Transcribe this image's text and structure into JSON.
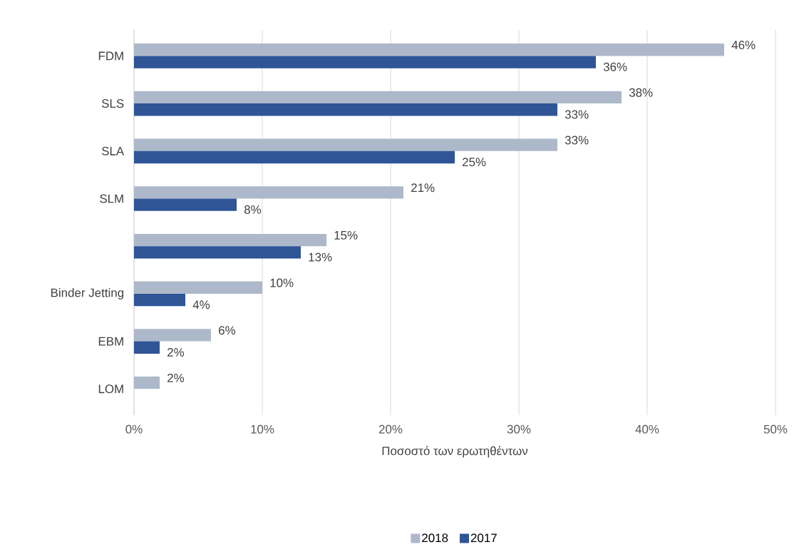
{
  "chart_data": {
    "type": "bar",
    "orientation": "horizontal",
    "xlabel": "Ποσοστό των ερωτηθέντων",
    "categories": [
      "FDM",
      "SLS",
      "SLA",
      "SLM",
      null,
      "Binder Jetting",
      "EBM",
      "LOM"
    ],
    "series": [
      {
        "name": "2018",
        "color": "#adb9ca",
        "values": [
          46,
          38,
          33,
          21,
          15,
          10,
          6,
          2
        ],
        "value_labels": [
          "46%",
          "38%",
          "33%",
          "21%",
          "15%",
          "10%",
          "6%",
          "2%"
        ]
      },
      {
        "name": "2017",
        "color": "#2f5597",
        "values": [
          36,
          33,
          25,
          8,
          13,
          4,
          2,
          null
        ],
        "value_labels": [
          "36%",
          "33%",
          "25%",
          "8%",
          "13%",
          "4%",
          "2%",
          null
        ]
      }
    ],
    "xlim": [
      0,
      50
    ],
    "xticks": [
      {
        "value": 0,
        "label": "0%"
      },
      {
        "value": 10,
        "label": "10%"
      },
      {
        "value": 20,
        "label": "20%"
      },
      {
        "value": 30,
        "label": "30%"
      },
      {
        "value": 40,
        "label": "40%"
      },
      {
        "value": 50,
        "label": "50%"
      }
    ],
    "grid": "x",
    "legend": "bottom"
  }
}
